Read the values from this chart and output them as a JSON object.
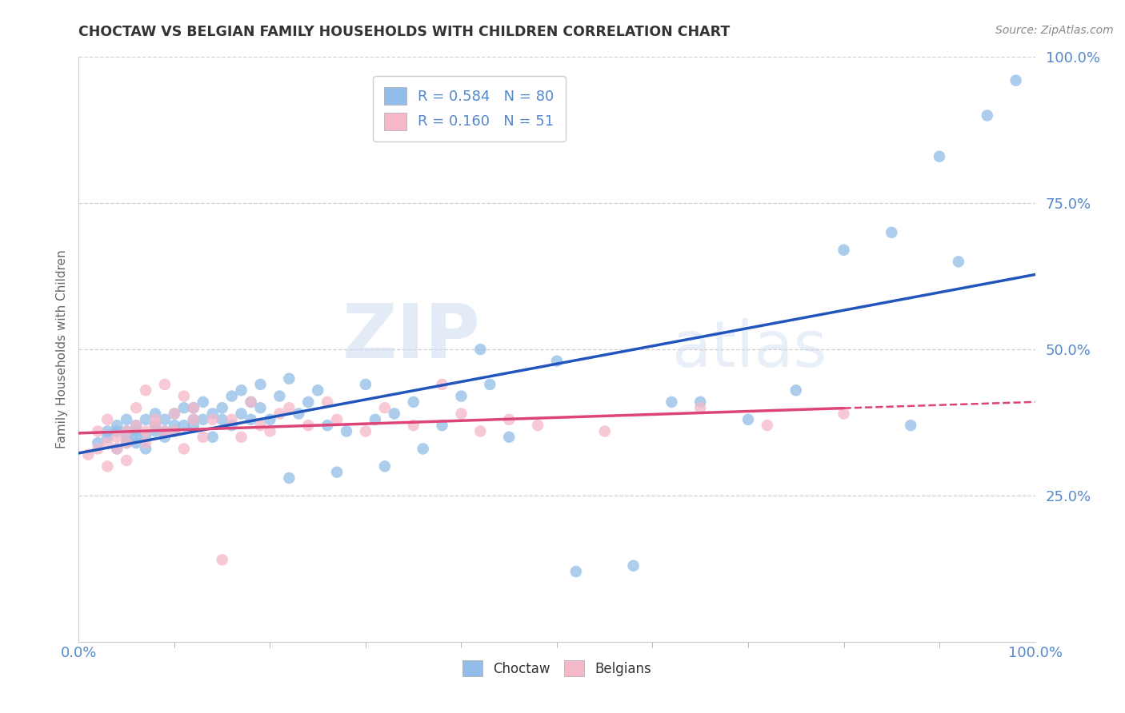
{
  "title": "CHOCTAW VS BELGIAN FAMILY HOUSEHOLDS WITH CHILDREN CORRELATION CHART",
  "source_text": "Source: ZipAtlas.com",
  "ylabel": "Family Households with Children",
  "xlim": [
    0.0,
    1.0
  ],
  "ylim": [
    0.0,
    1.0
  ],
  "ytick_positions": [
    0.25,
    0.5,
    0.75,
    1.0
  ],
  "ytick_labels": [
    "25.0%",
    "50.0%",
    "75.0%",
    "100.0%"
  ],
  "xtick_positions": [
    0.0,
    1.0
  ],
  "xtick_labels": [
    "0.0%",
    "100.0%"
  ],
  "grid_color": "#d0d0d0",
  "background_color": "#ffffff",
  "choctaw_color": "#92bde8",
  "belgian_color": "#f5b8c8",
  "choctaw_line_color": "#2255bb",
  "belgian_line_color": "#dd4477",
  "choctaw_R": 0.584,
  "choctaw_N": 80,
  "belgian_R": 0.16,
  "belgian_N": 51,
  "watermark_zip": "ZIP",
  "watermark_atlas": "atlas",
  "legend_choctaw_label": "Choctaw",
  "legend_belgian_label": "Belgians",
  "tick_color": "#5588cc",
  "choctaw_x": [
    0.02,
    0.03,
    0.03,
    0.04,
    0.04,
    0.04,
    0.05,
    0.05,
    0.05,
    0.05,
    0.06,
    0.06,
    0.06,
    0.06,
    0.07,
    0.07,
    0.07,
    0.08,
    0.08,
    0.08,
    0.09,
    0.09,
    0.09,
    0.1,
    0.1,
    0.1,
    0.11,
    0.11,
    0.12,
    0.12,
    0.12,
    0.13,
    0.13,
    0.14,
    0.14,
    0.15,
    0.15,
    0.16,
    0.16,
    0.17,
    0.17,
    0.18,
    0.18,
    0.19,
    0.19,
    0.2,
    0.21,
    0.22,
    0.22,
    0.23,
    0.24,
    0.25,
    0.26,
    0.27,
    0.28,
    0.3,
    0.31,
    0.32,
    0.33,
    0.35,
    0.36,
    0.38,
    0.4,
    0.42,
    0.43,
    0.45,
    0.5,
    0.52,
    0.58,
    0.62,
    0.65,
    0.7,
    0.75,
    0.8,
    0.85,
    0.87,
    0.9,
    0.92,
    0.95,
    0.98
  ],
  "choctaw_y": [
    0.34,
    0.35,
    0.36,
    0.33,
    0.36,
    0.37,
    0.34,
    0.35,
    0.36,
    0.38,
    0.34,
    0.35,
    0.36,
    0.37,
    0.33,
    0.35,
    0.38,
    0.36,
    0.37,
    0.39,
    0.35,
    0.36,
    0.38,
    0.36,
    0.37,
    0.39,
    0.37,
    0.4,
    0.37,
    0.38,
    0.4,
    0.38,
    0.41,
    0.35,
    0.39,
    0.38,
    0.4,
    0.37,
    0.42,
    0.39,
    0.43,
    0.38,
    0.41,
    0.4,
    0.44,
    0.38,
    0.42,
    0.45,
    0.28,
    0.39,
    0.41,
    0.43,
    0.37,
    0.29,
    0.36,
    0.44,
    0.38,
    0.3,
    0.39,
    0.41,
    0.33,
    0.37,
    0.42,
    0.5,
    0.44,
    0.35,
    0.48,
    0.12,
    0.13,
    0.41,
    0.41,
    0.38,
    0.43,
    0.67,
    0.7,
    0.37,
    0.83,
    0.65,
    0.9,
    0.96
  ],
  "belgian_x": [
    0.01,
    0.02,
    0.02,
    0.03,
    0.03,
    0.03,
    0.04,
    0.04,
    0.05,
    0.05,
    0.05,
    0.06,
    0.06,
    0.07,
    0.07,
    0.07,
    0.08,
    0.08,
    0.09,
    0.09,
    0.1,
    0.1,
    0.11,
    0.11,
    0.12,
    0.12,
    0.13,
    0.14,
    0.15,
    0.16,
    0.17,
    0.18,
    0.19,
    0.2,
    0.21,
    0.22,
    0.24,
    0.26,
    0.27,
    0.3,
    0.32,
    0.35,
    0.38,
    0.4,
    0.42,
    0.45,
    0.48,
    0.55,
    0.65,
    0.72,
    0.8
  ],
  "belgian_y": [
    0.32,
    0.33,
    0.36,
    0.3,
    0.34,
    0.38,
    0.35,
    0.33,
    0.31,
    0.36,
    0.34,
    0.37,
    0.4,
    0.34,
    0.36,
    0.43,
    0.37,
    0.38,
    0.36,
    0.44,
    0.36,
    0.39,
    0.33,
    0.42,
    0.38,
    0.4,
    0.35,
    0.38,
    0.14,
    0.38,
    0.35,
    0.41,
    0.37,
    0.36,
    0.39,
    0.4,
    0.37,
    0.41,
    0.38,
    0.36,
    0.4,
    0.37,
    0.44,
    0.39,
    0.36,
    0.38,
    0.37,
    0.36,
    0.4,
    0.37,
    0.39
  ]
}
